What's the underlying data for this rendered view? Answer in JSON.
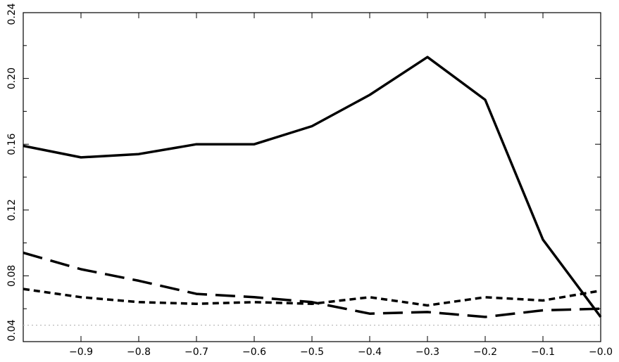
{
  "chart_data": {
    "type": "line",
    "title": "",
    "xlabel": "",
    "ylabel": "",
    "xlim": [
      -1.0,
      0.0
    ],
    "ylim": [
      0.04,
      0.24
    ],
    "x_ticks": [
      -0.9,
      -0.8,
      -0.7,
      -0.6,
      -0.5,
      -0.4,
      -0.3,
      -0.2,
      -0.1,
      0.0
    ],
    "x_tick_labels": [
      "−0.9",
      "−0.8",
      "−0.7",
      "−0.6",
      "−0.5",
      "−0.4",
      "−0.3",
      "−0.2",
      "−0.1",
      "−0.0"
    ],
    "y_ticks": [
      0.04,
      0.08,
      0.12,
      0.16,
      0.2,
      0.24
    ],
    "y_tick_labels": [
      "0.04",
      "0.08",
      "0.12",
      "0.16",
      "0.20",
      "0.24"
    ],
    "y_minor_ticks": [
      0.06,
      0.1,
      0.14,
      0.18,
      0.22
    ],
    "grid": false,
    "x": [
      -1.0,
      -0.9,
      -0.8,
      -0.7,
      -0.6,
      -0.5,
      -0.4,
      -0.3,
      -0.2,
      -0.1,
      0.0
    ],
    "series": [
      {
        "style": "solid",
        "color": "#000000",
        "values": [
          0.159,
          0.152,
          0.154,
          0.16,
          0.16,
          0.171,
          0.19,
          0.213,
          0.187,
          0.102,
          0.055
        ]
      },
      {
        "style": "long-dash",
        "color": "#000000",
        "values": [
          0.094,
          0.084,
          0.077,
          0.069,
          0.067,
          0.064,
          0.057,
          0.058,
          0.055,
          0.059,
          0.06
        ]
      },
      {
        "style": "short-dash",
        "color": "#000000",
        "values": [
          0.072,
          0.067,
          0.064,
          0.063,
          0.064,
          0.063,
          0.067,
          0.062,
          0.067,
          0.065,
          0.071
        ]
      },
      {
        "style": "dotted",
        "color": "#bbbbbb",
        "values": [
          0.05,
          0.05,
          0.05,
          0.05,
          0.05,
          0.05,
          0.05,
          0.05,
          0.05,
          0.05,
          0.05
        ]
      }
    ]
  }
}
